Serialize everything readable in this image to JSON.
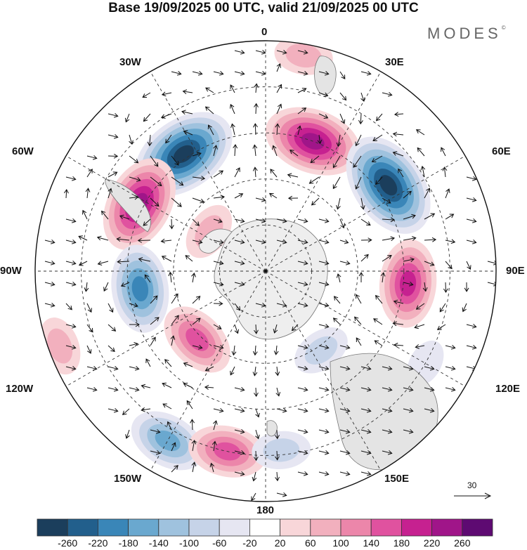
{
  "title": "Base 19/09/2025 00 UTC, valid 21/09/2025 00 UTC",
  "brand": "MODES",
  "brand_mark": "©",
  "longitudes": {
    "top": "0",
    "top_left": "30W",
    "top_right": "30E",
    "left_upper": "60W",
    "right_upper": "60E",
    "left": "90W",
    "right": "90E",
    "left_lower": "120W",
    "right_lower": "120E",
    "bottom_left": "150W",
    "bottom_right": "150E",
    "bottom": "180"
  },
  "vector_scale": {
    "value": "30"
  },
  "colorbar": {
    "ticks": [
      "-260",
      "-220",
      "-180",
      "-140",
      "-100",
      "-60",
      "-20",
      "20",
      "60",
      "100",
      "140",
      "180",
      "220",
      "260"
    ],
    "colors": [
      "#1b3e5c",
      "#225f8c",
      "#3a86b8",
      "#6aa8cf",
      "#9fc2de",
      "#c6d3e8",
      "#e6e6f2",
      "#ffffff",
      "#f8d6d9",
      "#f2b0be",
      "#ec86aa",
      "#e0529f",
      "#c62190",
      "#a01589",
      "#5e0a72"
    ]
  },
  "anomalies": [
    {
      "lon": -35,
      "colat": 0.62,
      "value": -280
    },
    {
      "lon": 20,
      "colat": 0.6,
      "value": 240
    },
    {
      "lon": -62,
      "colat": 0.62,
      "value": 250
    },
    {
      "lon": 55,
      "colat": 0.65,
      "value": -270
    },
    {
      "lon": 95,
      "colat": 0.62,
      "value": 200
    },
    {
      "lon": -98,
      "colat": 0.55,
      "value": -180
    },
    {
      "lon": -135,
      "colat": 0.42,
      "value": 160
    },
    {
      "lon": 145,
      "colat": 0.42,
      "value": -90
    },
    {
      "lon": -150,
      "colat": 0.85,
      "value": -140
    },
    {
      "lon": -168,
      "colat": 0.8,
      "value": 140
    },
    {
      "lon": 175,
      "colat": 0.78,
      "value": -60
    },
    {
      "lon": -110,
      "colat": 0.95,
      "value": 60
    },
    {
      "lon": -55,
      "colat": 0.3,
      "value": 60
    },
    {
      "lon": 10,
      "colat": 0.95,
      "value": 60
    },
    {
      "lon": 120,
      "colat": 0.8,
      "value": -30
    }
  ]
}
